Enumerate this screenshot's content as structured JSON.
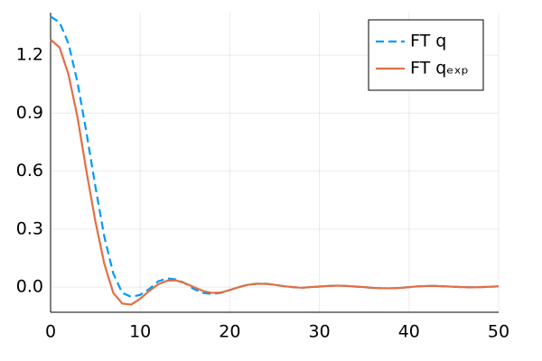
{
  "chart_data": {
    "type": "line",
    "x": [
      0,
      1,
      2,
      3,
      4,
      5,
      6,
      7,
      8,
      9,
      10,
      11,
      12,
      13,
      14,
      15,
      16,
      17,
      18,
      19,
      20,
      21,
      22,
      23,
      24,
      25,
      26,
      27,
      28,
      29,
      30,
      31,
      32,
      33,
      34,
      35,
      36,
      37,
      38,
      39,
      40,
      41,
      42,
      43,
      44,
      45,
      46,
      47,
      48,
      49,
      50
    ],
    "series": [
      {
        "name": "FT q",
        "color": "#009af9",
        "dash": true,
        "values": [
          1.4,
          1.37,
          1.26,
          1.06,
          0.8,
          0.52,
          0.26,
          0.07,
          -0.03,
          -0.05,
          -0.04,
          -0.01,
          0.03,
          0.045,
          0.04,
          0.02,
          -0.01,
          -0.03,
          -0.035,
          -0.03,
          -0.015,
          0.0,
          0.012,
          0.018,
          0.018,
          0.012,
          0.005,
          0.0,
          -0.003,
          0.0,
          0.003,
          0.006,
          0.008,
          0.006,
          0.003,
          0.0,
          -0.004,
          -0.006,
          -0.006,
          -0.004,
          0.0,
          0.004,
          0.006,
          0.006,
          0.004,
          0.002,
          0.0,
          -0.001,
          0.0,
          0.002,
          0.004
        ]
      },
      {
        "name": "FT qₑₓₚ",
        "color": "#e26f46",
        "dash": false,
        "values": [
          1.28,
          1.24,
          1.1,
          0.88,
          0.6,
          0.34,
          0.12,
          -0.03,
          -0.085,
          -0.09,
          -0.06,
          -0.02,
          0.015,
          0.033,
          0.035,
          0.02,
          0.0,
          -0.02,
          -0.03,
          -0.028,
          -0.015,
          0.0,
          0.012,
          0.017,
          0.017,
          0.012,
          0.005,
          0.0,
          -0.003,
          0.0,
          0.003,
          0.006,
          0.008,
          0.006,
          0.003,
          0.0,
          -0.004,
          -0.006,
          -0.006,
          -0.004,
          0.0,
          0.004,
          0.006,
          0.006,
          0.004,
          0.002,
          0.0,
          -0.001,
          0.0,
          0.002,
          0.004
        ]
      }
    ],
    "xlim": [
      0,
      50
    ],
    "xticks": [
      0,
      10,
      20,
      30,
      40,
      50
    ],
    "ylim": [
      -0.13,
      1.42
    ],
    "yticks": [
      {
        "value": 0,
        "label": "0.0"
      },
      0.3,
      0.6,
      0.9,
      1.2
    ],
    "grid": true,
    "legend": "top-right"
  }
}
